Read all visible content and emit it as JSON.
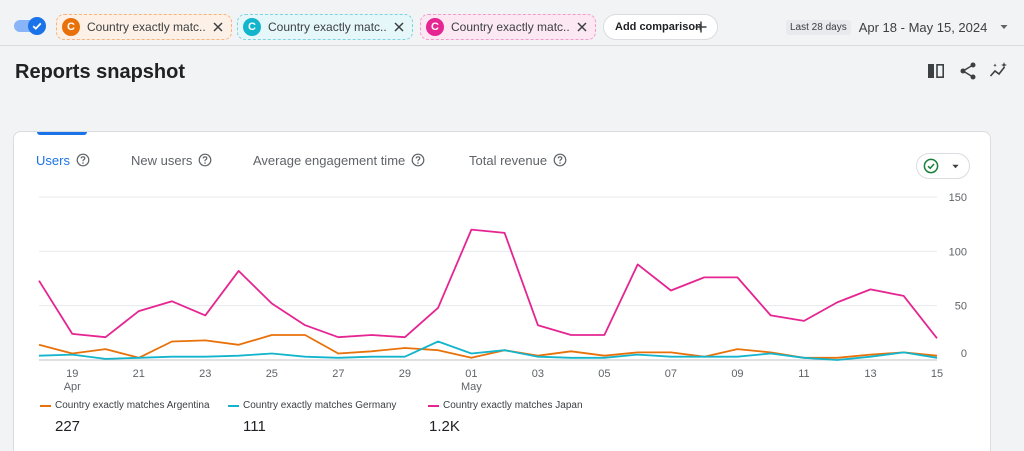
{
  "comparisons": [
    {
      "badge": "C",
      "label": "Country exactly matc...",
      "color": "#e8710a"
    },
    {
      "badge": "C",
      "label": "Country exactly matc...",
      "color": "#12b5cb"
    },
    {
      "badge": "C",
      "label": "Country exactly matc...",
      "color": "#e52592"
    }
  ],
  "add_comparison": "Add comparison",
  "date_range": {
    "period": "Last 28 days",
    "dates": "Apr 18 - May 15, 2024"
  },
  "page_title": "Reports snapshot",
  "tabs": [
    {
      "label": "Users",
      "active": true
    },
    {
      "label": "New users"
    },
    {
      "label": "Average engagement time"
    },
    {
      "label": "Total revenue"
    }
  ],
  "chart_data": {
    "type": "line",
    "x_ticks": [
      {
        "day": "19",
        "month": "Apr"
      },
      {
        "day": "21"
      },
      {
        "day": "23"
      },
      {
        "day": "25"
      },
      {
        "day": "27"
      },
      {
        "day": "29"
      },
      {
        "day": "01",
        "month": "May"
      },
      {
        "day": "03"
      },
      {
        "day": "05"
      },
      {
        "day": "07"
      },
      {
        "day": "09"
      },
      {
        "day": "11"
      },
      {
        "day": "13"
      },
      {
        "day": "15"
      }
    ],
    "x": [
      "Apr 18",
      "Apr 19",
      "Apr 20",
      "Apr 21",
      "Apr 22",
      "Apr 23",
      "Apr 24",
      "Apr 25",
      "Apr 26",
      "Apr 27",
      "Apr 28",
      "Apr 29",
      "Apr 30",
      "May 01",
      "May 02",
      "May 03",
      "May 04",
      "May 05",
      "May 06",
      "May 07",
      "May 08",
      "May 09",
      "May 10",
      "May 11",
      "May 12",
      "May 13",
      "May 14",
      "May 15"
    ],
    "y_ticks": [
      0,
      50,
      100,
      150
    ],
    "ylim": [
      0,
      150
    ],
    "series": [
      {
        "name": "Country exactly matches Argentina",
        "color": "#e8710a",
        "total": "227",
        "values": [
          14,
          6,
          10,
          2,
          17,
          18,
          14,
          23,
          23,
          6,
          8,
          11,
          9,
          2,
          9,
          4,
          8,
          4,
          7,
          7,
          3,
          10,
          7,
          2,
          2,
          5,
          7,
          4
        ]
      },
      {
        "name": "Country exactly matches Germany",
        "color": "#12b5cb",
        "total": "111",
        "values": [
          4,
          5,
          1,
          2,
          3,
          3,
          4,
          6,
          3,
          2,
          3,
          3,
          17,
          6,
          9,
          3,
          2,
          2,
          5,
          3,
          3,
          3,
          6,
          2,
          0,
          3,
          7,
          2
        ]
      },
      {
        "name": "Country exactly matches Japan",
        "color": "#e52592",
        "total": "1.2K",
        "values": [
          73,
          24,
          21,
          45,
          54,
          41,
          82,
          52,
          32,
          21,
          23,
          21,
          48,
          120,
          117,
          32,
          23,
          23,
          88,
          64,
          76,
          76,
          41,
          36,
          53,
          65,
          59,
          20
        ]
      }
    ]
  }
}
